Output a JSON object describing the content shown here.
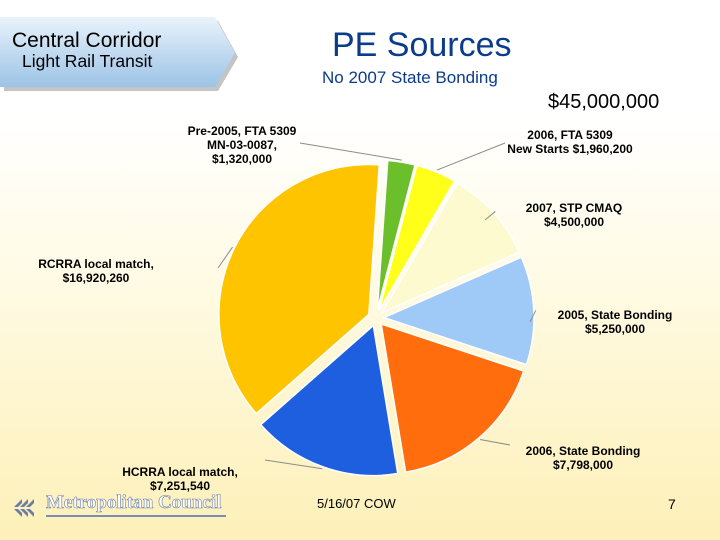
{
  "banner": {
    "title": "Central Corridor",
    "subtitle": "Light Rail Transit"
  },
  "title": "PE Sources",
  "subtitle": "No 2007 State Bonding",
  "total": "$45,000,000",
  "footer": {
    "date": "5/16/07 COW",
    "page": "7",
    "logo_text": "Metropolitan Council"
  },
  "chart_data": {
    "type": "pie",
    "title": "PE Sources",
    "slices": [
      {
        "name": "Pre-2005, FTA 5309 MN-03-0087,",
        "value": 1320000,
        "label_lines": [
          "Pre-2005, FTA 5309",
          "MN-03-0087,",
          "$1,320,000"
        ],
        "color": "#6abf2a"
      },
      {
        "name": "2006, FTA 5309 New Starts",
        "value": 1960200,
        "label_lines": [
          "2006, FTA 5309",
          "New Starts  $1,960,200"
        ],
        "color": "#ffff1a"
      },
      {
        "name": "2007, STP CMAQ",
        "value": 4500000,
        "label_lines": [
          "2007, STP CMAQ",
          "$4,500,000"
        ],
        "color": "#fdfad0"
      },
      {
        "name": "2005, State Bonding",
        "value": 5250000,
        "label_lines": [
          "2005, State Bonding",
          "$5,250,000"
        ],
        "color": "#9fcaf7"
      },
      {
        "name": "2006, State Bonding",
        "value": 7798000,
        "label_lines": [
          "2006, State Bonding",
          "$7,798,000"
        ],
        "color": "#ff6d0d"
      },
      {
        "name": "HCRRA local match,",
        "value": 7251540,
        "label_lines": [
          "HCRRA local match,",
          "$7,251,540"
        ],
        "color": "#1e5fe0"
      },
      {
        "name": "RCRRA local match,",
        "value": 16920260,
        "label_lines": [
          "RCRRA local match,",
          "$16,920,260"
        ],
        "color": "#ffc400"
      }
    ]
  }
}
